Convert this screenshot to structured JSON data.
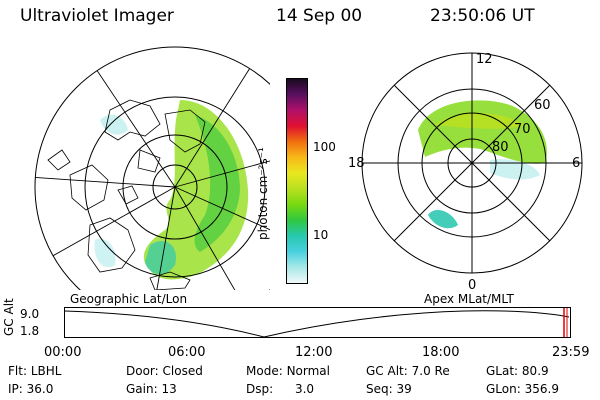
{
  "header": {
    "instrument": "Ultraviolet Imager",
    "date": "14 Sep 00",
    "time": "23:50:06 UT"
  },
  "left_panel": {
    "label": "Geographic Lat/Lon"
  },
  "right_panel": {
    "label": "Apex MLat/MLT",
    "mlt_labels": {
      "top": "12",
      "right": "6",
      "bottom": "0",
      "left": "18"
    },
    "lat_labels": [
      "60",
      "70",
      "80"
    ]
  },
  "colorbar": {
    "unit_label": "photon cm⁻²s⁻¹",
    "ticks": [
      "100",
      "10"
    ],
    "colors": [
      "#1a0a20",
      "#5a1060",
      "#b0106a",
      "#e01030",
      "#f07010",
      "#f8b818",
      "#e8e820",
      "#b8e020",
      "#78d810",
      "#30c840",
      "#28c8b0",
      "#48d0e0",
      "#a8e8e8",
      "#f0f8f8"
    ]
  },
  "timeline": {
    "axis_label": "GC Alt",
    "y_ticks": [
      "9.0",
      "1.8"
    ],
    "x_ticks": [
      "00:00",
      "06:00",
      "12:00",
      "18:00",
      "23:59"
    ]
  },
  "status": {
    "row1": [
      {
        "label": "Flt:",
        "value": "LBHL"
      },
      {
        "label": "Door:",
        "value": "Closed"
      },
      {
        "label": "Mode:",
        "value": "Normal"
      },
      {
        "label": "GC Alt:",
        "value": "7.0 Re"
      },
      {
        "label": "GLat:",
        "value": "80.9"
      }
    ],
    "row2": [
      {
        "label": "IP:",
        "value": "36.0"
      },
      {
        "label": "Gain:",
        "value": "13"
      },
      {
        "label": "Dsp:",
        "value": "3.0"
      },
      {
        "label": "Seq:",
        "value": "39"
      },
      {
        "label": "GLon:",
        "value": "356.9"
      }
    ]
  }
}
